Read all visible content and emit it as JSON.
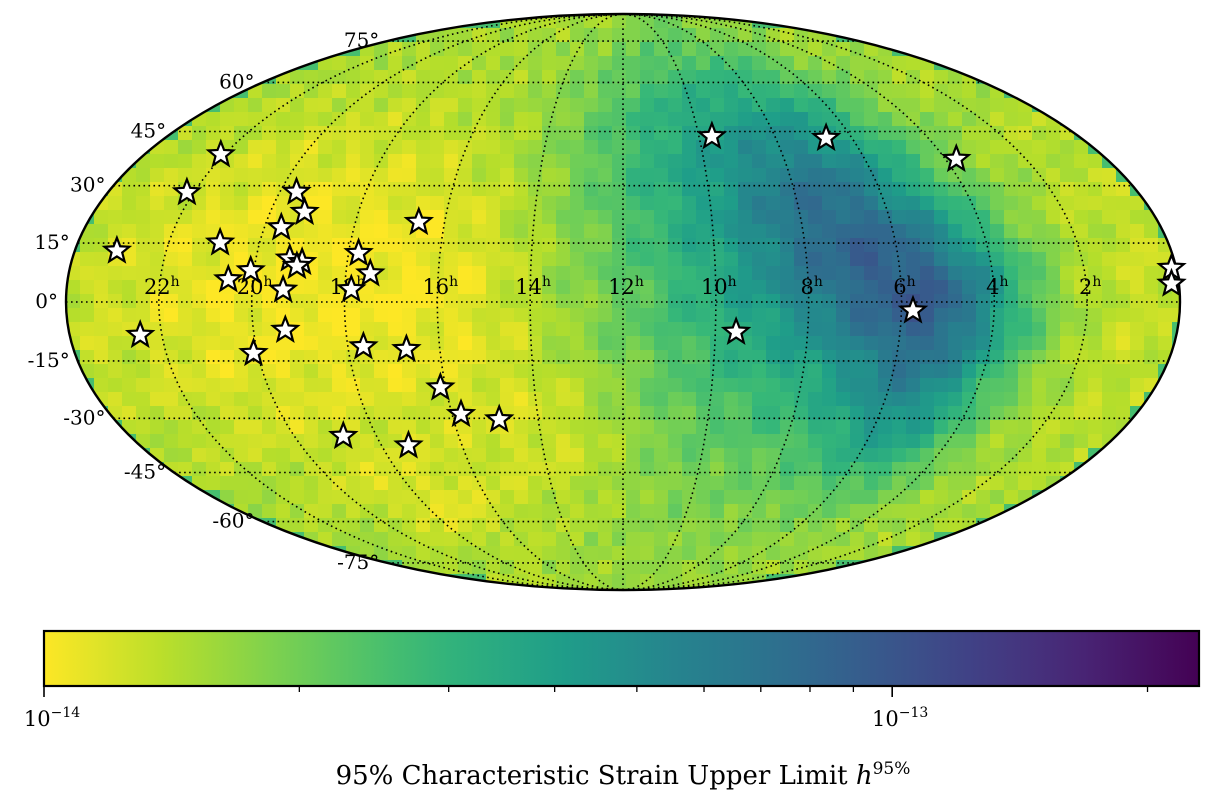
{
  "chart_data": {
    "type": "heatmap",
    "projection": "mollweide",
    "title": "",
    "xlabel": "",
    "ylabel": "",
    "grid": true,
    "ra_tick_labels": [
      {
        "ra_h": 22,
        "label": "22",
        "sup": "h"
      },
      {
        "ra_h": 20,
        "label": "20",
        "sup": "h"
      },
      {
        "ra_h": 18,
        "label": "18",
        "sup": "h"
      },
      {
        "ra_h": 16,
        "label": "16",
        "sup": "h"
      },
      {
        "ra_h": 14,
        "label": "14",
        "sup": "h"
      },
      {
        "ra_h": 12,
        "label": "12",
        "sup": "h"
      },
      {
        "ra_h": 10,
        "label": "10",
        "sup": "h"
      },
      {
        "ra_h": 8,
        "label": "8",
        "sup": "h"
      },
      {
        "ra_h": 6,
        "label": "6",
        "sup": "h"
      },
      {
        "ra_h": 4,
        "label": "4",
        "sup": "h"
      },
      {
        "ra_h": 2,
        "label": "2",
        "sup": "h"
      }
    ],
    "dec_tick_labels": [
      {
        "dec": 75,
        "label": "75°"
      },
      {
        "dec": 60,
        "label": "60°"
      },
      {
        "dec": 45,
        "label": "45°"
      },
      {
        "dec": 30,
        "label": "30°"
      },
      {
        "dec": 15,
        "label": "15°"
      },
      {
        "dec": 0,
        "label": "0°"
      },
      {
        "dec": -15,
        "label": "-15°"
      },
      {
        "dec": -30,
        "label": "-30°"
      },
      {
        "dec": -45,
        "label": "-45°"
      },
      {
        "dec": -60,
        "label": "-60°"
      },
      {
        "dec": -75,
        "label": "-75°"
      }
    ],
    "ra_gridlines_h": [
      0,
      2,
      4,
      6,
      8,
      10,
      12,
      14,
      16,
      18,
      20,
      22,
      24
    ],
    "dec_gridlines": [
      -75,
      -60,
      -45,
      -30,
      -15,
      0,
      15,
      30,
      45,
      60,
      75
    ],
    "colorbar": {
      "colormap": "viridis_r",
      "scale": "log",
      "vmin": 1e-14,
      "vmax": 2.3e-13,
      "ticks": [
        {
          "value": 1e-14,
          "base": "10",
          "exp": "−14"
        },
        {
          "value": 1e-13,
          "base": "10",
          "exp": "−13"
        }
      ],
      "label": "95% Characteristic Strain Upper Limit ",
      "label_math": "h",
      "label_sup": "95%",
      "colors": [
        "#fde725",
        "#b5de2b",
        "#6ece58",
        "#35b779",
        "#1f9e89",
        "#26828e",
        "#31688e",
        "#3e4989",
        "#482878",
        "#440154"
      ]
    },
    "strain_field": {
      "base_log10": -13.8,
      "features": [
        {
          "ra_h": 19.5,
          "dec": 5,
          "sigma_ra_h": 3.2,
          "sigma_dec": 35,
          "delta": -0.18
        },
        {
          "ra_h": 15.5,
          "dec": 5,
          "sigma_ra_h": 1.6,
          "sigma_dec": 25,
          "delta": -0.08
        },
        {
          "ra_h": 13.5,
          "dec": -35,
          "sigma_ra_h": 1.5,
          "sigma_dec": 15,
          "delta": -0.1
        },
        {
          "ra_h": 17.5,
          "dec": -55,
          "sigma_ra_h": 1.5,
          "sigma_dec": 10,
          "delta": -0.1
        },
        {
          "ra_h": 7.0,
          "dec": 20,
          "sigma_ra_h": 1.6,
          "sigma_dec": 25,
          "delta": 0.42
        },
        {
          "ra_h": 5.0,
          "dec": 0,
          "sigma_ra_h": 1.3,
          "sigma_dec": 15,
          "delta": 0.45
        },
        {
          "ra_h": 5.5,
          "dec": -30,
          "sigma_ra_h": 1.2,
          "sigma_dec": 15,
          "delta": 0.3
        },
        {
          "ra_h": 9.0,
          "dec": 10,
          "sigma_ra_h": 2.6,
          "sigma_dec": 40,
          "delta": 0.28
        },
        {
          "ra_h": 10.5,
          "dec": 45,
          "sigma_ra_h": 2.0,
          "sigma_dec": 20,
          "delta": 0.15
        },
        {
          "ra_h": 1.5,
          "dec": 0,
          "sigma_ra_h": 1.2,
          "sigma_dec": 40,
          "delta": -0.05
        }
      ]
    },
    "sources": [
      {
        "ra_h": 22.09,
        "dec": 38.5
      },
      {
        "ra_h": 22.16,
        "dec": 28.2
      },
      {
        "ra_h": 23.08,
        "dec": 13.0
      },
      {
        "ra_h": 22.47,
        "dec": -8.4
      },
      {
        "ra_h": 20.87,
        "dec": 15.1
      },
      {
        "ra_h": 20.53,
        "dec": 5.7
      },
      {
        "ra_h": 20.07,
        "dec": 8.0
      },
      {
        "ra_h": 20.09,
        "dec": -13.0
      },
      {
        "ra_h": 19.61,
        "dec": 28.3
      },
      {
        "ra_h": 19.62,
        "dec": 19.0
      },
      {
        "ra_h": 19.22,
        "dec": 23.0
      },
      {
        "ra_h": 19.26,
        "dec": 11.0
      },
      {
        "ra_h": 18.98,
        "dec": 10.1
      },
      {
        "ra_h": 19.08,
        "dec": 9.1
      },
      {
        "ra_h": 19.33,
        "dec": 3.1
      },
      {
        "ra_h": 19.31,
        "dec": -7.1
      },
      {
        "ra_h": 17.78,
        "dec": 12.4
      },
      {
        "ra_h": 17.47,
        "dec": 7.2
      },
      {
        "ra_h": 17.86,
        "dec": 3.2
      },
      {
        "ra_h": 16.58,
        "dec": 20.4
      },
      {
        "ra_h": 17.66,
        "dec": -11.3
      },
      {
        "ra_h": 16.73,
        "dec": -12.0
      },
      {
        "ra_h": 16.12,
        "dec": -21.9
      },
      {
        "ra_h": 15.79,
        "dec": -28.9
      },
      {
        "ra_h": 14.92,
        "dec": -30.3
      },
      {
        "ra_h": 18.81,
        "dec": -34.8
      },
      {
        "ra_h": 17.33,
        "dec": -37.4
      },
      {
        "ra_h": 9.66,
        "dec": 43.6
      },
      {
        "ra_h": 9.55,
        "dec": -7.6
      },
      {
        "ra_h": 6.68,
        "dec": 43.1
      },
      {
        "ra_h": 3.73,
        "dec": 37.2
      },
      {
        "ra_h": 5.75,
        "dec": -2.2
      },
      {
        "ra_h": 0.1,
        "dec": 8.6
      },
      {
        "ra_h": 0.16,
        "dec": 4.6
      }
    ]
  }
}
